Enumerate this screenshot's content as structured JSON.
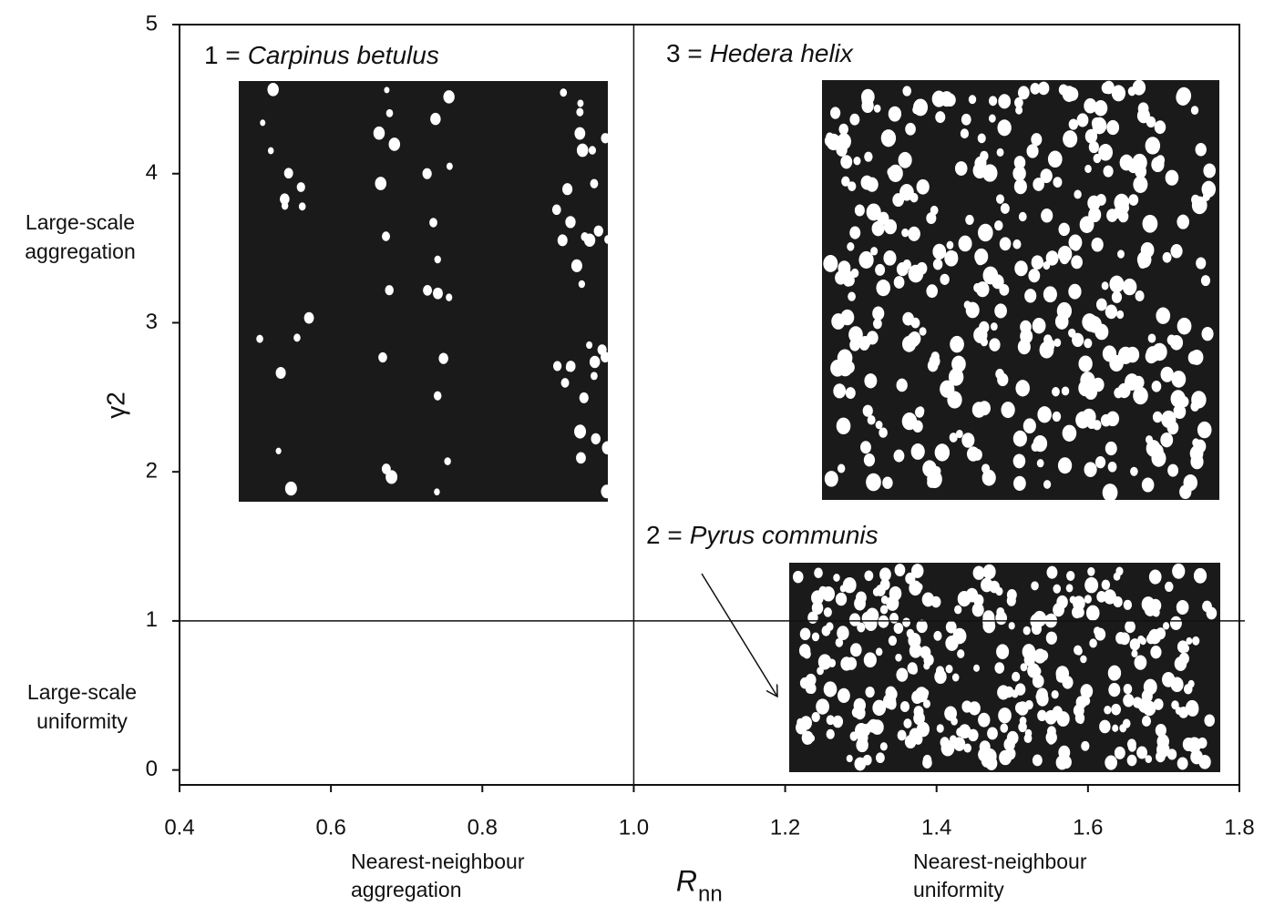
{
  "chart_data": {
    "type": "quadrant",
    "xlabel": {
      "main": "R",
      "sub": "nn"
    },
    "ylabel": "γ2",
    "xlim": [
      0.4,
      1.8
    ],
    "xticks": [
      0.4,
      0.6,
      0.8,
      {
        "value": 1,
        "label": "1.0"
      },
      1.2,
      1.4,
      1.6,
      1.8
    ],
    "ylim": [
      -0.1,
      5
    ],
    "yticks": [
      0,
      1,
      2,
      3,
      4,
      5
    ],
    "vlines": [
      1
    ],
    "hlines": [
      1
    ],
    "y_region_labels": [
      [
        "Large-scale",
        "aggregation"
      ],
      [
        "Large-scale",
        "uniformity"
      ]
    ],
    "x_region_labels": [
      [
        "Nearest-neighbour",
        "aggregation"
      ],
      [
        "Nearest-neighbour",
        "uniformity"
      ]
    ],
    "insets": [
      {
        "number": "1 =",
        "species": "Carpinus betulus"
      },
      {
        "number": "3 =",
        "species": "Hedera helix"
      },
      {
        "number": "2 =",
        "species": "Pyrus communis"
      }
    ]
  }
}
